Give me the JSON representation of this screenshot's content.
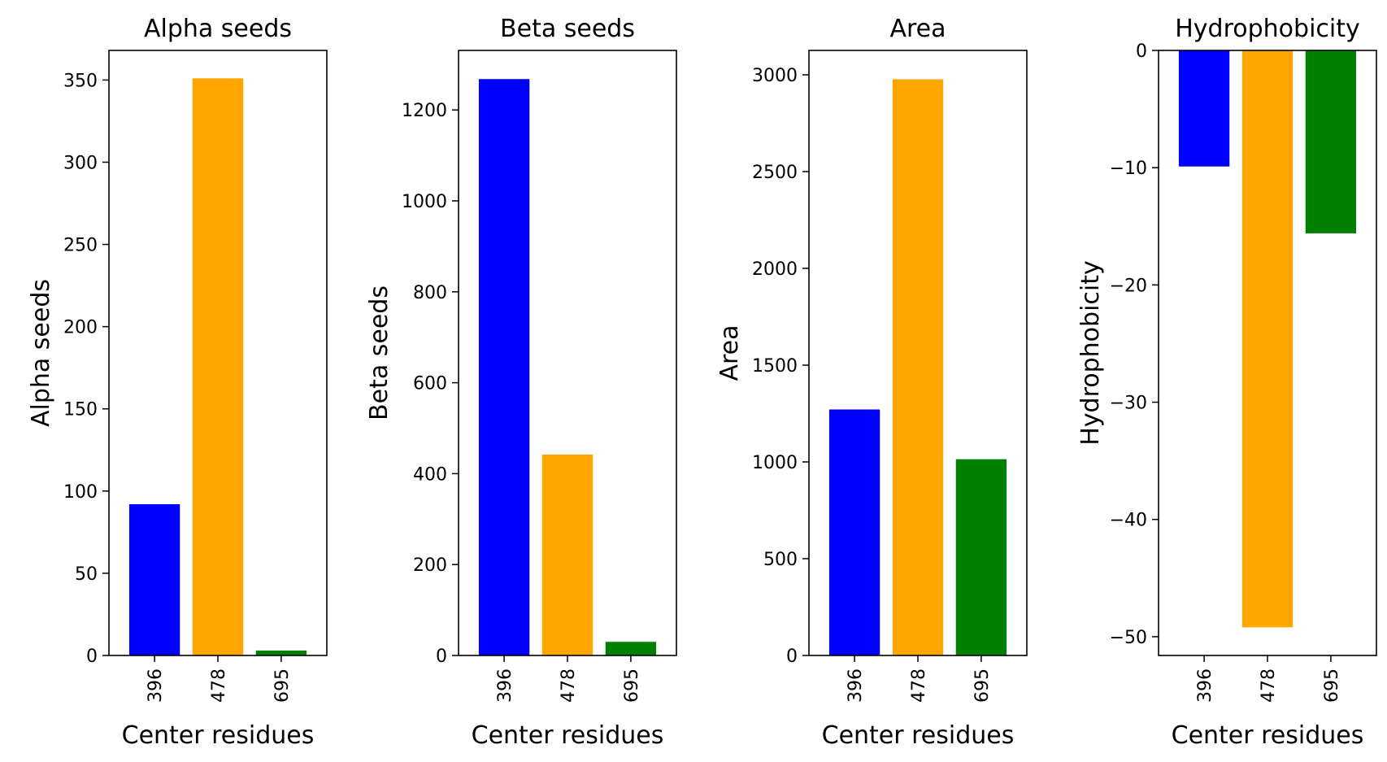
{
  "chart_data": [
    {
      "type": "bar",
      "title": "Alpha seeds",
      "xlabel": "Center residues",
      "ylabel": "Alpha seeds",
      "categories": [
        "396",
        "478",
        "695"
      ],
      "values": [
        92,
        351,
        3
      ],
      "colors": [
        "#0000ff",
        "#ffa500",
        "#008000"
      ],
      "ylim": [
        0,
        368
      ],
      "yticks": [
        0,
        50,
        100,
        150,
        200,
        250,
        300,
        350
      ],
      "ytick_labels": [
        "0",
        "50",
        "100",
        "150",
        "200",
        "250",
        "300",
        "350"
      ],
      "grid": false
    },
    {
      "type": "bar",
      "title": "Beta seeds",
      "xlabel": "Center residues",
      "ylabel": "Beta seeds",
      "categories": [
        "396",
        "478",
        "695"
      ],
      "values": [
        1268,
        442,
        30
      ],
      "colors": [
        "#0000ff",
        "#ffa500",
        "#008000"
      ],
      "ylim": [
        0,
        1331
      ],
      "yticks": [
        0,
        200,
        400,
        600,
        800,
        1000,
        1200
      ],
      "ytick_labels": [
        "0",
        "200",
        "400",
        "600",
        "800",
        "1000",
        "1200"
      ],
      "grid": false
    },
    {
      "type": "bar",
      "title": "Area",
      "xlabel": "Center residues",
      "ylabel": "Area",
      "categories": [
        "396",
        "478",
        "695"
      ],
      "values": [
        1271,
        2977,
        1014
      ],
      "colors": [
        "#0000ff",
        "#ffa500",
        "#008000"
      ],
      "ylim": [
        0,
        3126
      ],
      "yticks": [
        0,
        500,
        1000,
        1500,
        2000,
        2500,
        3000
      ],
      "ytick_labels": [
        "0",
        "500",
        "1000",
        "1500",
        "2000",
        "2500",
        "3000"
      ],
      "grid": false
    },
    {
      "type": "bar",
      "title": "Hydrophobicity",
      "xlabel": "Center residues",
      "ylabel": "Hydrophobicity",
      "categories": [
        "396",
        "478",
        "695"
      ],
      "values": [
        -9.9,
        -49.2,
        -15.6
      ],
      "colors": [
        "#0000ff",
        "#ffa500",
        "#008000"
      ],
      "ylim": [
        -51.6,
        0
      ],
      "yticks": [
        0,
        -10,
        -20,
        -30,
        -40,
        -50
      ],
      "ytick_labels": [
        "0",
        "−10",
        "−20",
        "−30",
        "−40",
        "−50"
      ],
      "grid": false
    }
  ]
}
